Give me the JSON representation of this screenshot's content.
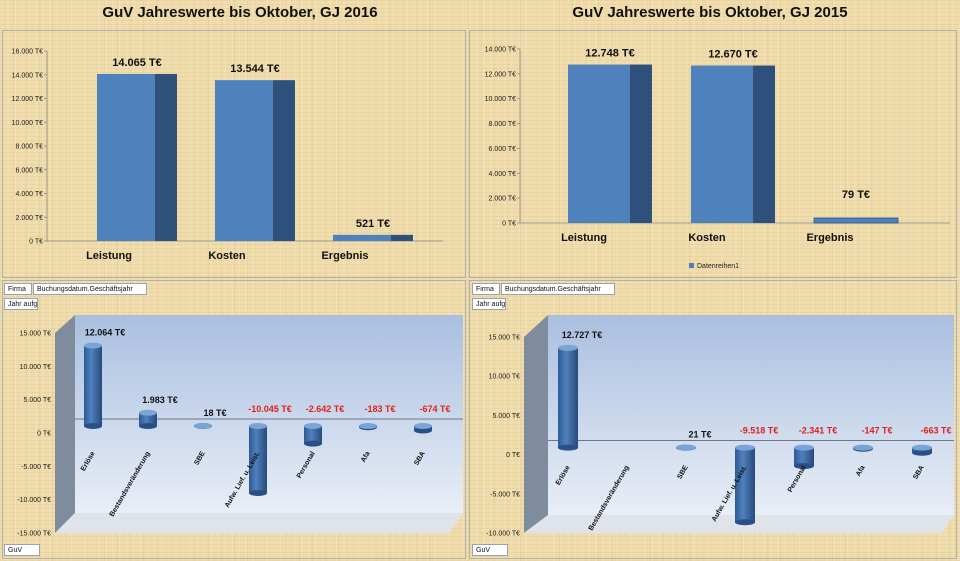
{
  "colors": {
    "bar_front": "#4f81bd",
    "bar_side": "#30507c",
    "bar_top": "#7aa4d6",
    "positive_label": "#111111",
    "negative_label": "#e0201b",
    "plot_top": "#a9bfe0",
    "plot_bottom": "#e9eef7"
  },
  "titles": {
    "left": "GuV Jahreswerte bis Oktober, GJ 2016",
    "right": "GuV Jahreswerte bis Oktober, GJ 2015"
  },
  "fields": {
    "left": {
      "firma": "Firma",
      "jahr": "Buchungsdatum.Geschäftsjahr",
      "aufg": "Jahr aufg.",
      "guv": "GuV"
    },
    "right": {
      "firma": "Firma",
      "jahr": "Buchungsdatum.Geschäftsjahr",
      "aufg": "Jahr aufg.",
      "guv": "GuV"
    }
  },
  "chart_data": [
    {
      "type": "bar",
      "title": "GuV Jahreswerte bis Oktober, GJ 2016",
      "categories": [
        "Leistung",
        "Kosten",
        "Ergebnis"
      ],
      "values": [
        14065,
        13544,
        521
      ],
      "data_labels": [
        "14.065 T€",
        "13.544 T€",
        "521 T€"
      ],
      "ylim": [
        0,
        16000
      ],
      "yticks": [
        "0 T€",
        "2.000 T€",
        "4.000 T€",
        "6.000 T€",
        "8.000 T€",
        "10.000 T€",
        "12.000 T€",
        "14.000 T€",
        "16.000 T€"
      ],
      "legend": null,
      "grid": false
    },
    {
      "type": "bar",
      "title": "GuV Jahreswerte bis Oktober, GJ 2015",
      "categories": [
        "Leistung",
        "Kosten",
        "Ergebnis"
      ],
      "values": [
        12748,
        12670,
        79
      ],
      "data_labels": [
        "12.748 T€",
        "12.670 T€",
        "79 T€"
      ],
      "ylim": [
        0,
        14000
      ],
      "yticks": [
        "0 T€",
        "2.000 T€",
        "4.000 T€",
        "6.000 T€",
        "8.000 T€",
        "10.000 T€",
        "12.000 T€",
        "14.000 T€"
      ],
      "legend": "Datenreihen1",
      "legend_position": "bottom",
      "grid": false
    },
    {
      "type": "bar",
      "style": "3d-cylinder",
      "categories": [
        "Erlöse",
        "Bestandsveränderung",
        "SBE",
        "Aufw. Lief. u. Leist.",
        "Personal",
        "Afa",
        "SBA"
      ],
      "values": [
        12064,
        1983,
        18,
        -10045,
        -2642,
        -183,
        -674
      ],
      "data_labels": [
        "12.064 T€",
        "1.983 T€",
        "18 T€",
        "-10.045 T€",
        "-2.642 T€",
        "-183 T€",
        "-674 T€"
      ],
      "ylim": [
        -15000,
        15000
      ],
      "yticks": [
        "-15.000 T€",
        "-10.000 T€",
        "-5.000 T€",
        "0 T€",
        "5.000 T€",
        "10.000 T€",
        "15.000 T€"
      ]
    },
    {
      "type": "bar",
      "style": "3d-cylinder",
      "categories": [
        "Erlöse",
        "Bestandsveränderung",
        "SBE",
        "Aufw. Lief. u. Leist.",
        "Personal",
        "Afa",
        "SBA"
      ],
      "values": [
        12727,
        null,
        21,
        -9518,
        -2341,
        -147,
        -663
      ],
      "data_labels": [
        "12.727 T€",
        "",
        "21 T€",
        "-9.518 T€",
        "-2.341 T€",
        "-147 T€",
        "-663 T€"
      ],
      "ylim": [
        -10000,
        15000
      ],
      "yticks": [
        "-10.000 T€",
        "-5.000 T€",
        "0 T€",
        "5.000 T€",
        "10.000 T€",
        "15.000 T€"
      ]
    }
  ]
}
